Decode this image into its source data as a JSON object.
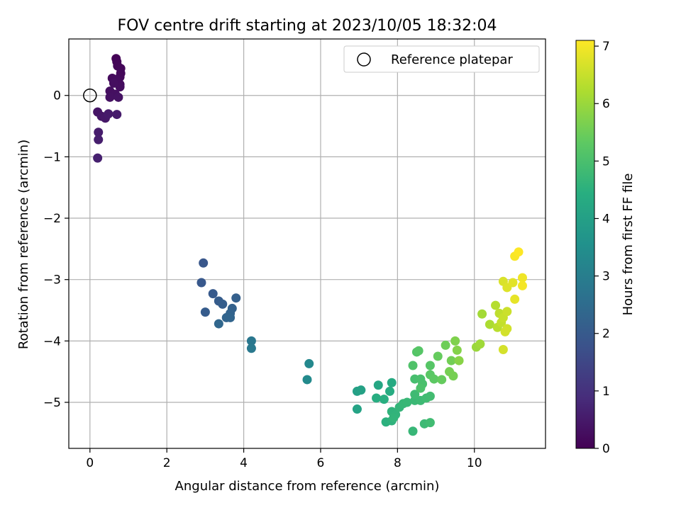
{
  "chart_data": {
    "type": "scatter",
    "title": "FOV centre drift starting at 2023/10/05 18:32:04",
    "xlabel": "Angular distance from reference (arcmin)",
    "ylabel": "Rotation from reference (arcmin)",
    "xlim": [
      -0.55,
      11.85
    ],
    "ylim": [
      -5.75,
      0.92
    ],
    "xticks": [
      0,
      2,
      4,
      6,
      8,
      10
    ],
    "yticks": [
      0,
      -1,
      -2,
      -3,
      -4,
      -5
    ],
    "grid": true,
    "legend": {
      "position": "top-right",
      "entries": [
        "Reference platepar"
      ]
    },
    "reference_point": {
      "name": "Reference platepar",
      "x": 0,
      "y": 0
    },
    "colorbar": {
      "label": "Hours from first FF file",
      "colormap": "viridis",
      "range": [
        0,
        7.1
      ],
      "ticks": [
        0,
        1,
        2,
        3,
        4,
        5,
        6,
        7
      ]
    },
    "points": [
      {
        "x": 0.68,
        "y": 0.6,
        "t": 0.05
      },
      {
        "x": 0.7,
        "y": 0.55,
        "t": 0.08
      },
      {
        "x": 0.72,
        "y": 0.48,
        "t": 0.1
      },
      {
        "x": 0.8,
        "y": 0.44,
        "t": 0.12
      },
      {
        "x": 0.8,
        "y": 0.36,
        "t": 0.14
      },
      {
        "x": 0.78,
        "y": 0.3,
        "t": 0.16
      },
      {
        "x": 0.58,
        "y": 0.28,
        "t": 0.18
      },
      {
        "x": 0.7,
        "y": 0.26,
        "t": 0.2
      },
      {
        "x": 0.78,
        "y": 0.18,
        "t": 0.22
      },
      {
        "x": 0.78,
        "y": 0.14,
        "t": 0.24
      },
      {
        "x": 0.62,
        "y": 0.2,
        "t": 0.26
      },
      {
        "x": 0.52,
        "y": 0.07,
        "t": 0.28
      },
      {
        "x": 0.66,
        "y": 0.02,
        "t": 0.3
      },
      {
        "x": 0.52,
        "y": -0.03,
        "t": 0.32
      },
      {
        "x": 0.74,
        "y": -0.03,
        "t": 0.34
      },
      {
        "x": 0.2,
        "y": -0.27,
        "t": 0.38
      },
      {
        "x": 0.3,
        "y": -0.34,
        "t": 0.42
      },
      {
        "x": 0.4,
        "y": -0.37,
        "t": 0.46
      },
      {
        "x": 0.48,
        "y": -0.3,
        "t": 0.5
      },
      {
        "x": 0.7,
        "y": -0.31,
        "t": 0.52
      },
      {
        "x": 0.22,
        "y": -0.6,
        "t": 0.55
      },
      {
        "x": 0.22,
        "y": -0.72,
        "t": 0.58
      },
      {
        "x": 0.2,
        "y": -1.02,
        "t": 0.62
      },
      {
        "x": 2.95,
        "y": -2.73,
        "t": 1.9
      },
      {
        "x": 2.9,
        "y": -3.05,
        "t": 1.95
      },
      {
        "x": 3.2,
        "y": -3.23,
        "t": 2.0
      },
      {
        "x": 3.35,
        "y": -3.35,
        "t": 2.05
      },
      {
        "x": 3.45,
        "y": -3.4,
        "t": 2.1
      },
      {
        "x": 3.8,
        "y": -3.3,
        "t": 2.15
      },
      {
        "x": 3.7,
        "y": -3.47,
        "t": 2.2
      },
      {
        "x": 3.65,
        "y": -3.55,
        "t": 2.25
      },
      {
        "x": 3.55,
        "y": -3.62,
        "t": 2.28
      },
      {
        "x": 3.65,
        "y": -3.62,
        "t": 2.3
      },
      {
        "x": 3.0,
        "y": -3.53,
        "t": 2.05
      },
      {
        "x": 3.35,
        "y": -3.72,
        "t": 2.35
      },
      {
        "x": 4.2,
        "y": -4.0,
        "t": 2.8
      },
      {
        "x": 4.2,
        "y": -4.12,
        "t": 2.85
      },
      {
        "x": 5.7,
        "y": -4.37,
        "t": 3.3
      },
      {
        "x": 5.65,
        "y": -4.63,
        "t": 3.35
      },
      {
        "x": 6.95,
        "y": -4.82,
        "t": 4.0
      },
      {
        "x": 7.05,
        "y": -4.8,
        "t": 4.05
      },
      {
        "x": 6.95,
        "y": -5.11,
        "t": 4.1
      },
      {
        "x": 7.5,
        "y": -4.72,
        "t": 4.2
      },
      {
        "x": 7.85,
        "y": -4.68,
        "t": 4.3
      },
      {
        "x": 7.8,
        "y": -4.82,
        "t": 4.35
      },
      {
        "x": 7.45,
        "y": -4.93,
        "t": 4.4
      },
      {
        "x": 7.65,
        "y": -4.95,
        "t": 4.45
      },
      {
        "x": 7.7,
        "y": -5.32,
        "t": 4.5
      },
      {
        "x": 7.85,
        "y": -5.3,
        "t": 4.55
      },
      {
        "x": 7.85,
        "y": -5.15,
        "t": 4.58
      },
      {
        "x": 7.95,
        "y": -5.2,
        "t": 4.6
      },
      {
        "x": 7.9,
        "y": -5.25,
        "t": 4.62
      },
      {
        "x": 8.05,
        "y": -5.08,
        "t": 4.65
      },
      {
        "x": 8.15,
        "y": -5.02,
        "t": 4.7
      },
      {
        "x": 8.25,
        "y": -5.0,
        "t": 4.72
      },
      {
        "x": 8.45,
        "y": -4.97,
        "t": 4.75
      },
      {
        "x": 8.6,
        "y": -4.97,
        "t": 4.8
      },
      {
        "x": 8.45,
        "y": -4.87,
        "t": 4.82
      },
      {
        "x": 8.75,
        "y": -4.93,
        "t": 4.85
      },
      {
        "x": 8.85,
        "y": -4.9,
        "t": 4.88
      },
      {
        "x": 8.4,
        "y": -5.47,
        "t": 4.7
      },
      {
        "x": 8.7,
        "y": -5.35,
        "t": 4.8
      },
      {
        "x": 8.85,
        "y": -5.33,
        "t": 4.85
      },
      {
        "x": 8.45,
        "y": -4.62,
        "t": 4.95
      },
      {
        "x": 8.6,
        "y": -4.62,
        "t": 5.0
      },
      {
        "x": 8.65,
        "y": -4.7,
        "t": 5.0
      },
      {
        "x": 8.6,
        "y": -4.77,
        "t": 5.05
      },
      {
        "x": 8.4,
        "y": -4.4,
        "t": 5.1
      },
      {
        "x": 8.5,
        "y": -4.18,
        "t": 5.15
      },
      {
        "x": 8.55,
        "y": -4.16,
        "t": 5.2
      },
      {
        "x": 8.85,
        "y": -4.4,
        "t": 5.2
      },
      {
        "x": 8.85,
        "y": -4.55,
        "t": 5.25
      },
      {
        "x": 8.95,
        "y": -4.62,
        "t": 5.3
      },
      {
        "x": 9.05,
        "y": -4.25,
        "t": 5.4
      },
      {
        "x": 9.15,
        "y": -4.63,
        "t": 5.4
      },
      {
        "x": 9.25,
        "y": -4.07,
        "t": 5.5
      },
      {
        "x": 9.4,
        "y": -4.32,
        "t": 5.55
      },
      {
        "x": 9.35,
        "y": -4.5,
        "t": 5.6
      },
      {
        "x": 9.45,
        "y": -4.57,
        "t": 5.6
      },
      {
        "x": 9.5,
        "y": -4.0,
        "t": 5.7
      },
      {
        "x": 9.55,
        "y": -4.15,
        "t": 5.75
      },
      {
        "x": 9.6,
        "y": -4.32,
        "t": 5.8
      },
      {
        "x": 10.05,
        "y": -4.1,
        "t": 6.0
      },
      {
        "x": 10.15,
        "y": -4.05,
        "t": 6.05
      },
      {
        "x": 10.2,
        "y": -3.56,
        "t": 6.1
      },
      {
        "x": 10.4,
        "y": -3.73,
        "t": 6.2
      },
      {
        "x": 10.55,
        "y": -3.42,
        "t": 6.3
      },
      {
        "x": 10.6,
        "y": -3.78,
        "t": 6.35
      },
      {
        "x": 10.65,
        "y": -3.55,
        "t": 6.4
      },
      {
        "x": 10.7,
        "y": -3.7,
        "t": 6.45
      },
      {
        "x": 10.75,
        "y": -3.62,
        "t": 6.5
      },
      {
        "x": 10.85,
        "y": -3.52,
        "t": 6.55
      },
      {
        "x": 10.85,
        "y": -3.8,
        "t": 6.6
      },
      {
        "x": 10.8,
        "y": -3.85,
        "t": 6.62
      },
      {
        "x": 10.75,
        "y": -4.14,
        "t": 6.65
      },
      {
        "x": 10.75,
        "y": -3.03,
        "t": 6.7
      },
      {
        "x": 10.85,
        "y": -3.13,
        "t": 6.75
      },
      {
        "x": 11.0,
        "y": -3.05,
        "t": 6.8
      },
      {
        "x": 11.05,
        "y": -3.32,
        "t": 6.85
      },
      {
        "x": 11.25,
        "y": -2.97,
        "t": 6.95
      },
      {
        "x": 11.25,
        "y": -3.1,
        "t": 7.0
      },
      {
        "x": 11.05,
        "y": -2.62,
        "t": 7.05
      },
      {
        "x": 11.15,
        "y": -2.55,
        "t": 7.1
      }
    ]
  }
}
